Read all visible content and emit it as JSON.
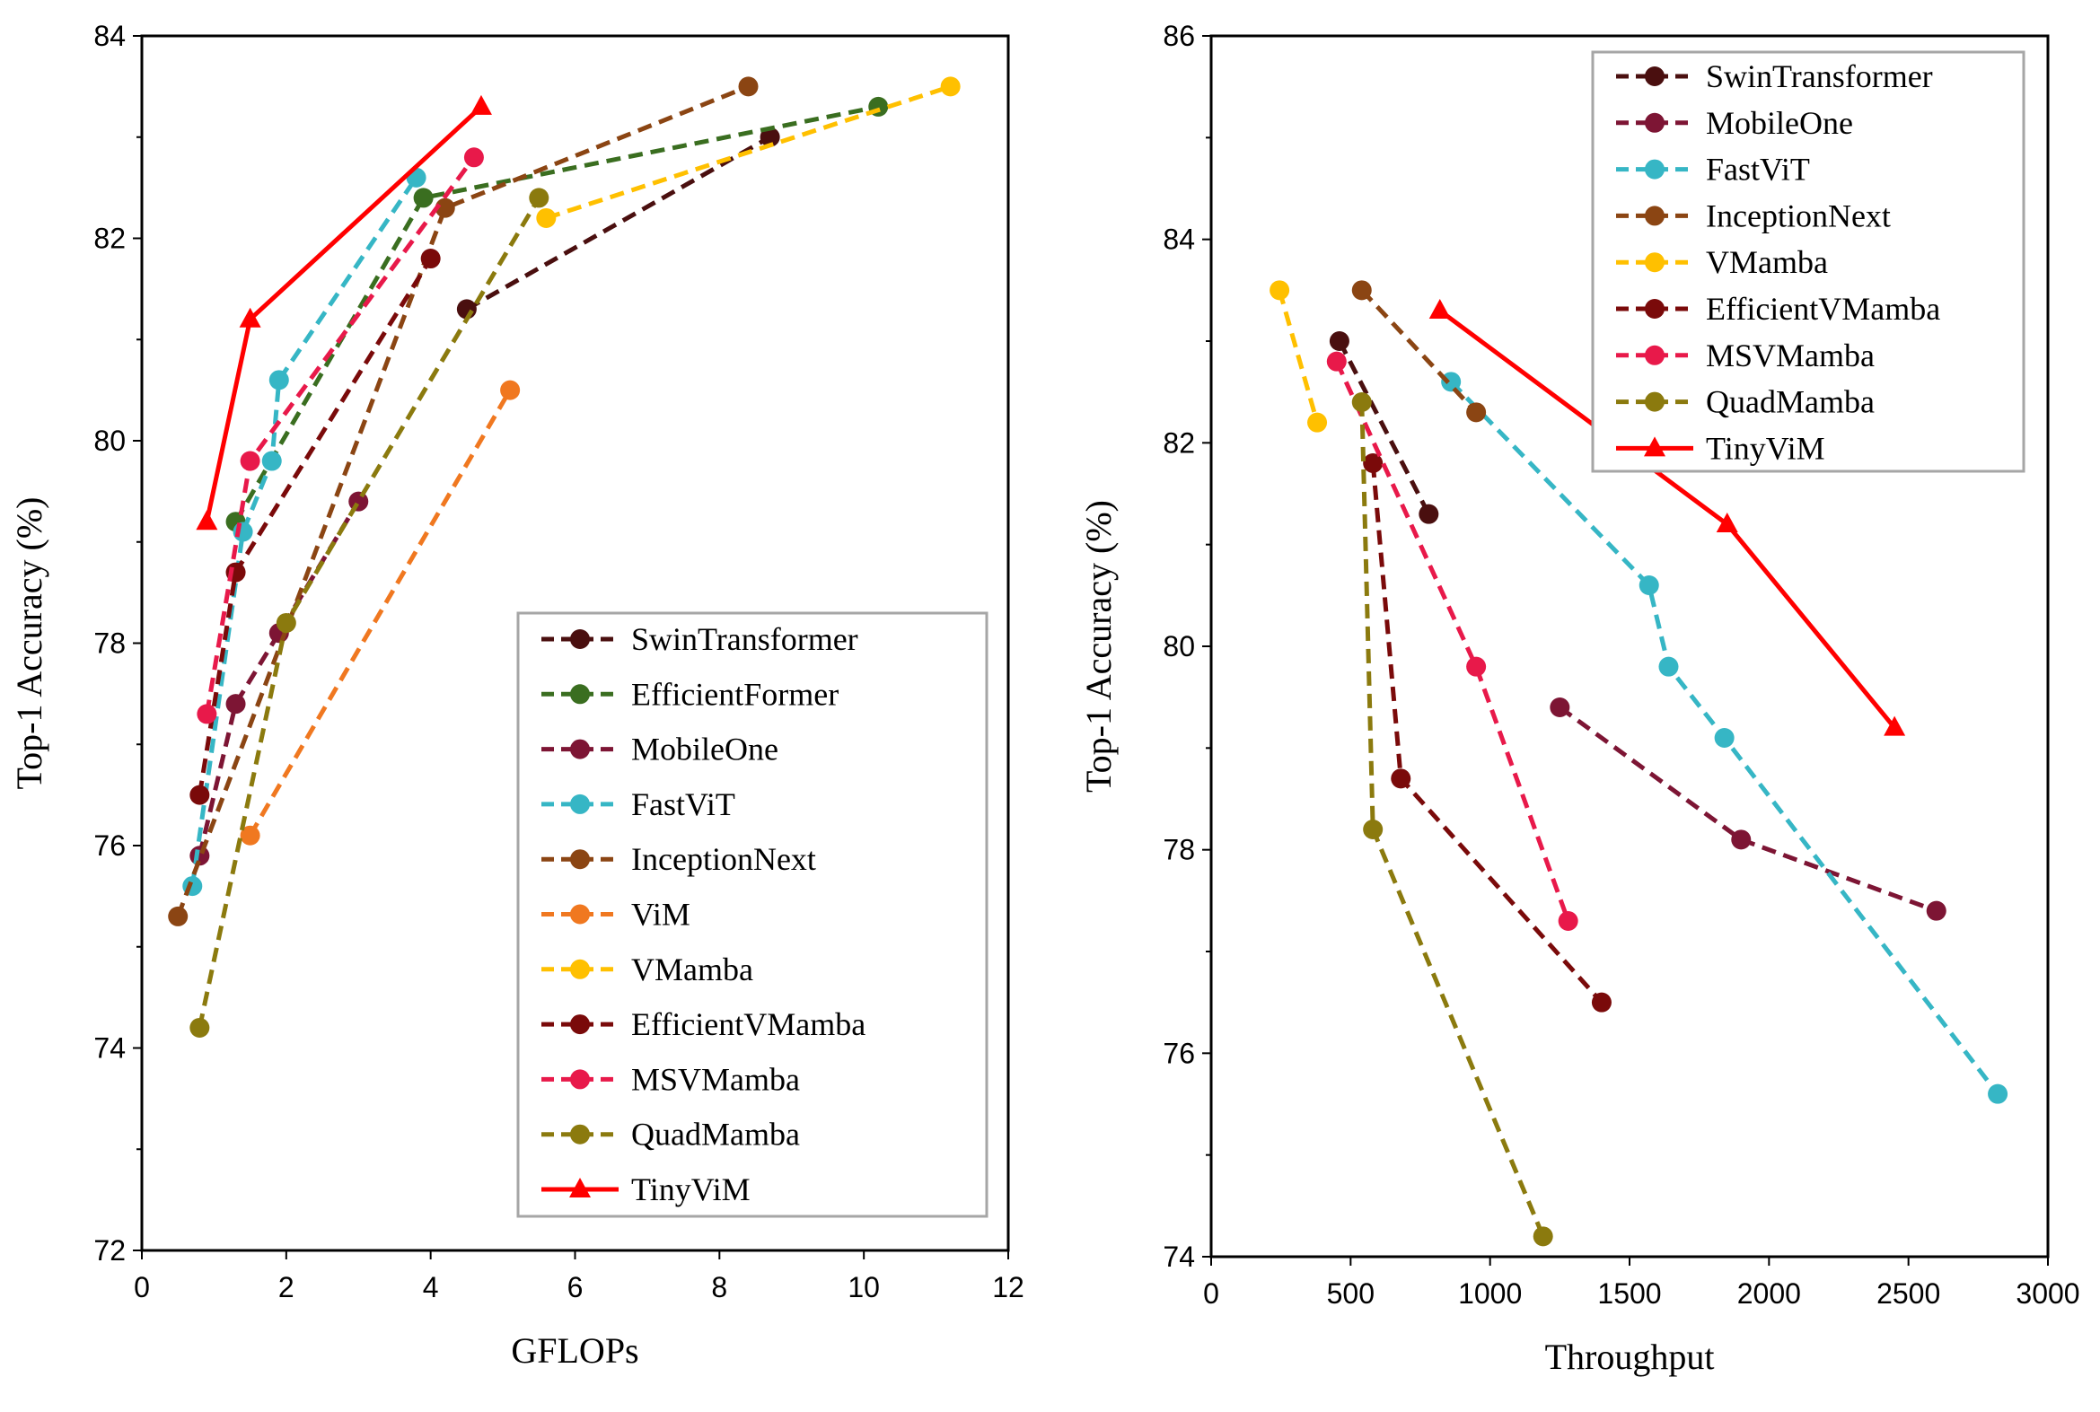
{
  "chart_data": [
    {
      "type": "line",
      "xlabel": "GFLOPs",
      "ylabel": "Top-1 Accuracy (%)",
      "xlim": [
        0,
        12
      ],
      "ylim": [
        72,
        84
      ],
      "xticks": [
        0,
        2,
        4,
        6,
        8,
        10,
        12
      ],
      "yticks": [
        72,
        74,
        76,
        78,
        80,
        82,
        84
      ],
      "legend_position": "lower-right",
      "series": [
        {
          "name": "SwinTransformer",
          "color": "#4a0f0f",
          "dash": true,
          "marker": "circle",
          "x": [
            4.5,
            8.7
          ],
          "y": [
            81.3,
            83.0
          ]
        },
        {
          "name": "EfficientFormer",
          "color": "#3a6e20",
          "dash": true,
          "marker": "circle",
          "x": [
            1.3,
            3.9,
            10.2
          ],
          "y": [
            79.2,
            82.4,
            83.3
          ]
        },
        {
          "name": "MobileOne",
          "color": "#7d1534",
          "dash": true,
          "marker": "circle",
          "x": [
            0.8,
            1.3,
            1.9,
            3.0
          ],
          "y": [
            75.9,
            77.4,
            78.1,
            79.4
          ]
        },
        {
          "name": "FastViT",
          "color": "#36b6c5",
          "dash": true,
          "marker": "circle",
          "x": [
            0.7,
            1.4,
            1.8,
            1.9,
            3.8
          ],
          "y": [
            75.6,
            79.1,
            79.8,
            80.6,
            82.6
          ]
        },
        {
          "name": "InceptionNext",
          "color": "#8b4513",
          "dash": true,
          "marker": "circle",
          "x": [
            0.5,
            4.2,
            8.4
          ],
          "y": [
            75.3,
            82.3,
            83.5
          ]
        },
        {
          "name": "ViM",
          "color": "#f07820",
          "dash": true,
          "marker": "circle",
          "x": [
            1.5,
            5.1
          ],
          "y": [
            76.1,
            80.5
          ]
        },
        {
          "name": "VMamba",
          "color": "#ffc000",
          "dash": true,
          "marker": "circle",
          "x": [
            5.6,
            11.2
          ],
          "y": [
            82.2,
            83.5
          ]
        },
        {
          "name": "EfficientVMamba",
          "color": "#7a0a0a",
          "dash": true,
          "marker": "circle",
          "x": [
            0.8,
            1.3,
            4.0
          ],
          "y": [
            76.5,
            78.7,
            81.8
          ]
        },
        {
          "name": "MSVMamba",
          "color": "#e8194a",
          "dash": true,
          "marker": "circle",
          "x": [
            0.9,
            1.5,
            4.6
          ],
          "y": [
            77.3,
            79.8,
            82.8
          ]
        },
        {
          "name": "QuadMamba",
          "color": "#8b7a0e",
          "dash": true,
          "marker": "circle",
          "x": [
            0.8,
            2.0,
            5.5
          ],
          "y": [
            74.2,
            78.2,
            82.4
          ]
        },
        {
          "name": "TinyViM",
          "color": "#ff0000",
          "dash": false,
          "marker": "triangle",
          "x": [
            0.9,
            1.5,
            4.7
          ],
          "y": [
            79.2,
            81.2,
            83.3
          ]
        }
      ]
    },
    {
      "type": "line",
      "xlabel": "Throughput",
      "ylabel": "Top-1 Accuracy (%)",
      "xlim": [
        0,
        3000
      ],
      "ylim": [
        74,
        86
      ],
      "xticks": [
        0,
        500,
        1000,
        1500,
        2000,
        2500,
        3000
      ],
      "yticks": [
        74,
        76,
        78,
        80,
        82,
        84,
        86
      ],
      "legend_position": "top-right",
      "series": [
        {
          "name": "SwinTransformer",
          "color": "#4a0f0f",
          "dash": true,
          "marker": "circle",
          "x": [
            460,
            780
          ],
          "y": [
            83.0,
            81.3
          ]
        },
        {
          "name": "MobileOne",
          "color": "#7d1534",
          "dash": true,
          "marker": "circle",
          "x": [
            1250,
            1900,
            2600
          ],
          "y": [
            79.4,
            78.1,
            77.4
          ]
        },
        {
          "name": "FastViT",
          "color": "#36b6c5",
          "dash": true,
          "marker": "circle",
          "x": [
            860,
            1570,
            1640,
            1840,
            2820
          ],
          "y": [
            82.6,
            80.6,
            79.8,
            79.1,
            75.6
          ]
        },
        {
          "name": "InceptionNext",
          "color": "#8b4513",
          "dash": true,
          "marker": "circle",
          "x": [
            540,
            950
          ],
          "y": [
            83.5,
            82.3
          ]
        },
        {
          "name": "VMamba",
          "color": "#ffc000",
          "dash": true,
          "marker": "circle",
          "x": [
            245,
            380
          ],
          "y": [
            83.5,
            82.2
          ]
        },
        {
          "name": "EfficientVMamba",
          "color": "#7a0a0a",
          "dash": true,
          "marker": "circle",
          "x": [
            580,
            680,
            1400
          ],
          "y": [
            81.8,
            78.7,
            76.5
          ]
        },
        {
          "name": "MSVMamba",
          "color": "#e8194a",
          "dash": true,
          "marker": "circle",
          "x": [
            450,
            950,
            1280
          ],
          "y": [
            82.8,
            79.8,
            77.3
          ]
        },
        {
          "name": "QuadMamba",
          "color": "#8b7a0e",
          "dash": true,
          "marker": "circle",
          "x": [
            540,
            580,
            1190
          ],
          "y": [
            82.4,
            78.2,
            74.2
          ]
        },
        {
          "name": "TinyViM",
          "color": "#ff0000",
          "dash": false,
          "marker": "triangle",
          "x": [
            820,
            1850,
            2450
          ],
          "y": [
            83.3,
            81.2,
            79.2
          ]
        }
      ]
    }
  ]
}
